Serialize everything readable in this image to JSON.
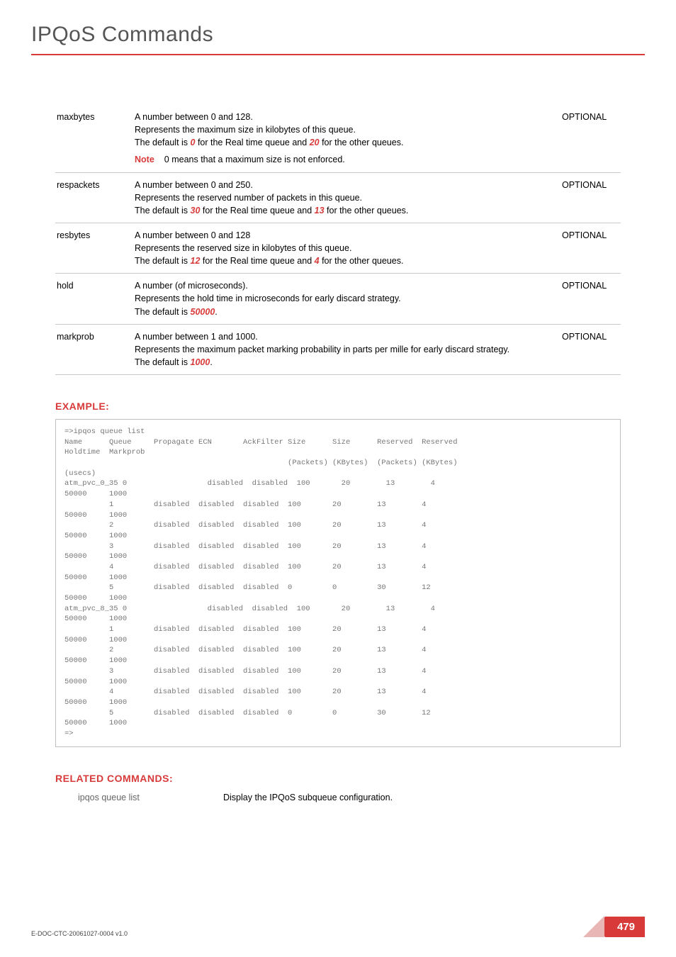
{
  "page": {
    "title": "IPQoS Commands",
    "doc_id": "E-DOC-CTC-20061027-0004 v1.0",
    "page_number": "479"
  },
  "params": [
    {
      "name": "maxbytes",
      "opt": "OPTIONAL",
      "line1": "A number between 0 and 128.",
      "line2": "Represents the maximum size in kilobytes of this queue.",
      "line3_a": "The default is ",
      "line3_v1": "0",
      "line3_b": "  for the Real time queue and ",
      "line3_v2": "20",
      "line3_c": " for the other queues.",
      "note_label": "Note",
      "note_text": "0 means that a maximum size is not enforced."
    },
    {
      "name": "respackets",
      "opt": "OPTIONAL",
      "line1": "A number between 0 and 250.",
      "line2": "Represents the reserved number of packets in this queue.",
      "line3_a": "The default is ",
      "line3_v1": "30",
      "line3_b": " for the Real time queue and ",
      "line3_v2": "13",
      "line3_c": " for the other queues."
    },
    {
      "name": "resbytes",
      "opt": "OPTIONAL",
      "line1": "A number between 0 and 128",
      "line2": "Represents the reserved size in kilobytes of this queue.",
      "line3_a": "The default is ",
      "line3_v1": "12",
      "line3_b": " for the Real time queue and ",
      "line3_v2": "4",
      "line3_c": " for the other queues."
    },
    {
      "name": "hold",
      "opt": "OPTIONAL",
      "line1": "A number (of microseconds).",
      "line2": "Represents the hold time in microseconds for early discard strategy.",
      "line3_a": "The default is ",
      "line3_v1": "50000",
      "line3_c": "."
    },
    {
      "name": "markprob",
      "opt": "OPTIONAL",
      "line1": "A number between 1 and 1000.",
      "line2": "Represents the maximum packet marking probability in parts per mille for early  discard strategy.",
      "line3_a": "The default is ",
      "line3_v1": "1000",
      "line3_c": "."
    }
  ],
  "example_label": "EXAMPLE:",
  "example_code": "=>ipqos queue list\nName      Queue     Propagate ECN       AckFilter Size      Size      Reserved  Reserved\nHoldtime  Markprob\n                                                  (Packets) (KBytes)  (Packets) (KBytes)\n(usecs)\natm_pvc_0_35 0                  disabled  disabled  100       20        13        4\n50000     1000\n          1         disabled  disabled  disabled  100       20        13        4\n50000     1000\n          2         disabled  disabled  disabled  100       20        13        4\n50000     1000\n          3         disabled  disabled  disabled  100       20        13        4\n50000     1000\n          4         disabled  disabled  disabled  100       20        13        4\n50000     1000\n          5         disabled  disabled  disabled  0         0         30        12\n50000     1000\natm_pvc_8_35 0                  disabled  disabled  100       20        13        4\n50000     1000\n          1         disabled  disabled  disabled  100       20        13        4\n50000     1000\n          2         disabled  disabled  disabled  100       20        13        4\n50000     1000\n          3         disabled  disabled  disabled  100       20        13        4\n50000     1000\n          4         disabled  disabled  disabled  100       20        13        4\n50000     1000\n          5         disabled  disabled  disabled  0         0         30        12\n50000     1000\n=>",
  "related_label": "RELATED COMMANDS:",
  "related": {
    "cmd": "ipqos queue list",
    "desc": "Display the IPQoS subqueue configuration."
  }
}
